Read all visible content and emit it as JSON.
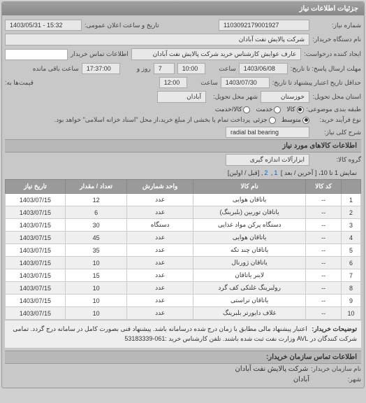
{
  "header": {
    "title": "جزئیات اطلاعات نیاز"
  },
  "req": {
    "number_label": "شماره نیاز:",
    "number": "1103092179001927",
    "announce_label": "تاریخ و ساعت اعلان عمومی:",
    "announce": "1403/05/31 - 15:32",
    "buyer_dev_label": "نام دستگاه خریدار:",
    "buyer_dev": "شرکت پالایش نفت آبادان",
    "creator_label": "ایجاد کننده درخواست:",
    "creator": "عارف عوایش کارشناس خرید شرکت پالایش نفت آبادان",
    "contact_label": "اطلاعات تماس خریدار",
    "contact": "",
    "deadline_label": "مهلت ارسال پاسخ: تا تاریخ:",
    "deadline_date": "1403/06/08",
    "time_label": "ساعت",
    "deadline_time": "10:00",
    "days_remaining": "7",
    "days_suffix": "روز و",
    "time_remaining": "17:37:00",
    "time_suffix": "ساعت باقی مانده",
    "validdeadline_label": "حداقل تاریخ اعتبار پیشنهاد تا تاریخ:",
    "validdeadline_date": "1403/07/30",
    "validdeadline_time": "12:00",
    "currency_label": "قیمت‌ها به:",
    "delivery_state_label": "استان محل تحویل:",
    "delivery_state": "خوزستان",
    "delivery_city_label": "شهر محل تحویل:",
    "delivery_city": "آبادان",
    "category_label": "طبقه بندی موضوعی:",
    "category_options": [
      "کالا",
      "خدمت",
      "کالا/خدمت"
    ],
    "category_selected": 0,
    "process_label": "نوع فرآیند خرید:",
    "process_options": [
      "متوسط",
      "جزئی"
    ],
    "process_selected": 0,
    "process_note": "پرداخت تمام یا بخشی از مبلغ خرید،از محل \"اسناد خزانه اسلامی\" خواهد بود.",
    "keyword_label": "شرح کلی نیاز:",
    "keyword": "radial bal bearing"
  },
  "goods": {
    "section_title": "اطلاعات کالاهای مورد نیاز",
    "group_label": "گروه کالا:",
    "group": "ابزارآلات اندازه گیری",
    "pager_text": "نمایش 1 تا 10، [ آخرین / بعد ]",
    "pager_links": [
      "1",
      "2"
    ],
    "pager_suffix": "[قبل / اولین]",
    "columns": [
      "",
      "کد کالا",
      "نام کالا",
      "واحد شمارش",
      "تعداد / مقدار",
      "تاریخ نیاز"
    ],
    "rows": [
      [
        "1",
        "--",
        "یاتاقان هوایی",
        "عدد",
        "12",
        "1403/07/15"
      ],
      [
        "2",
        "--",
        "یاتاقان توربین (بلبرینگ)",
        "عدد",
        "6",
        "1403/07/15"
      ],
      [
        "3",
        "--",
        "دستگاه پرکن مواد غذایی",
        "دستگاه",
        "30",
        "1403/07/15"
      ],
      [
        "4",
        "--",
        "یاتاقان هوایی",
        "عدد",
        "45",
        "1403/07/15"
      ],
      [
        "5",
        "--",
        "یاتاقان چند تکه",
        "عدد",
        "35",
        "1403/07/15"
      ],
      [
        "6",
        "--",
        "یاتاقان ژورنال",
        "عدد",
        "10",
        "1403/07/15"
      ],
      [
        "7",
        "--",
        "لاینر یاتاقان",
        "عدد",
        "15",
        "1403/07/15"
      ],
      [
        "8",
        "--",
        "رولبرینگ غلتکی کف گرد",
        "عدد",
        "10",
        "1403/07/15"
      ],
      [
        "9",
        "--",
        "یاتاقان تراستی",
        "عدد",
        "10",
        "1403/07/15"
      ],
      [
        "10",
        "--",
        "غلاف دایورتر بلبرینگ",
        "عدد",
        "10",
        "1403/07/15"
      ]
    ],
    "note_label": "توضیحات خریدار:",
    "note": "اعتبار پیشنهاد مالی مطابق با زمان درج شده درسامانه باشد. پیشنهاد فنی بصورت کامل در سامانه درج گردد. تمامی شرکت کنندگان در AVL وزارت نفت ثبت شده باشند. تلفن کارشناس خرید :061-53183339"
  },
  "contact": {
    "title": "اطلاعات تماس سازمان خریدار:",
    "org_label": "نام سازمان خریدار:",
    "org": "شرکت پالایش نفت آبادان",
    "city_label": "شهر:",
    "city": "آبادان"
  },
  "colors": {
    "header_bg": "#909090",
    "table_header_bg": "#9a9a9a",
    "link": "#0066cc"
  }
}
